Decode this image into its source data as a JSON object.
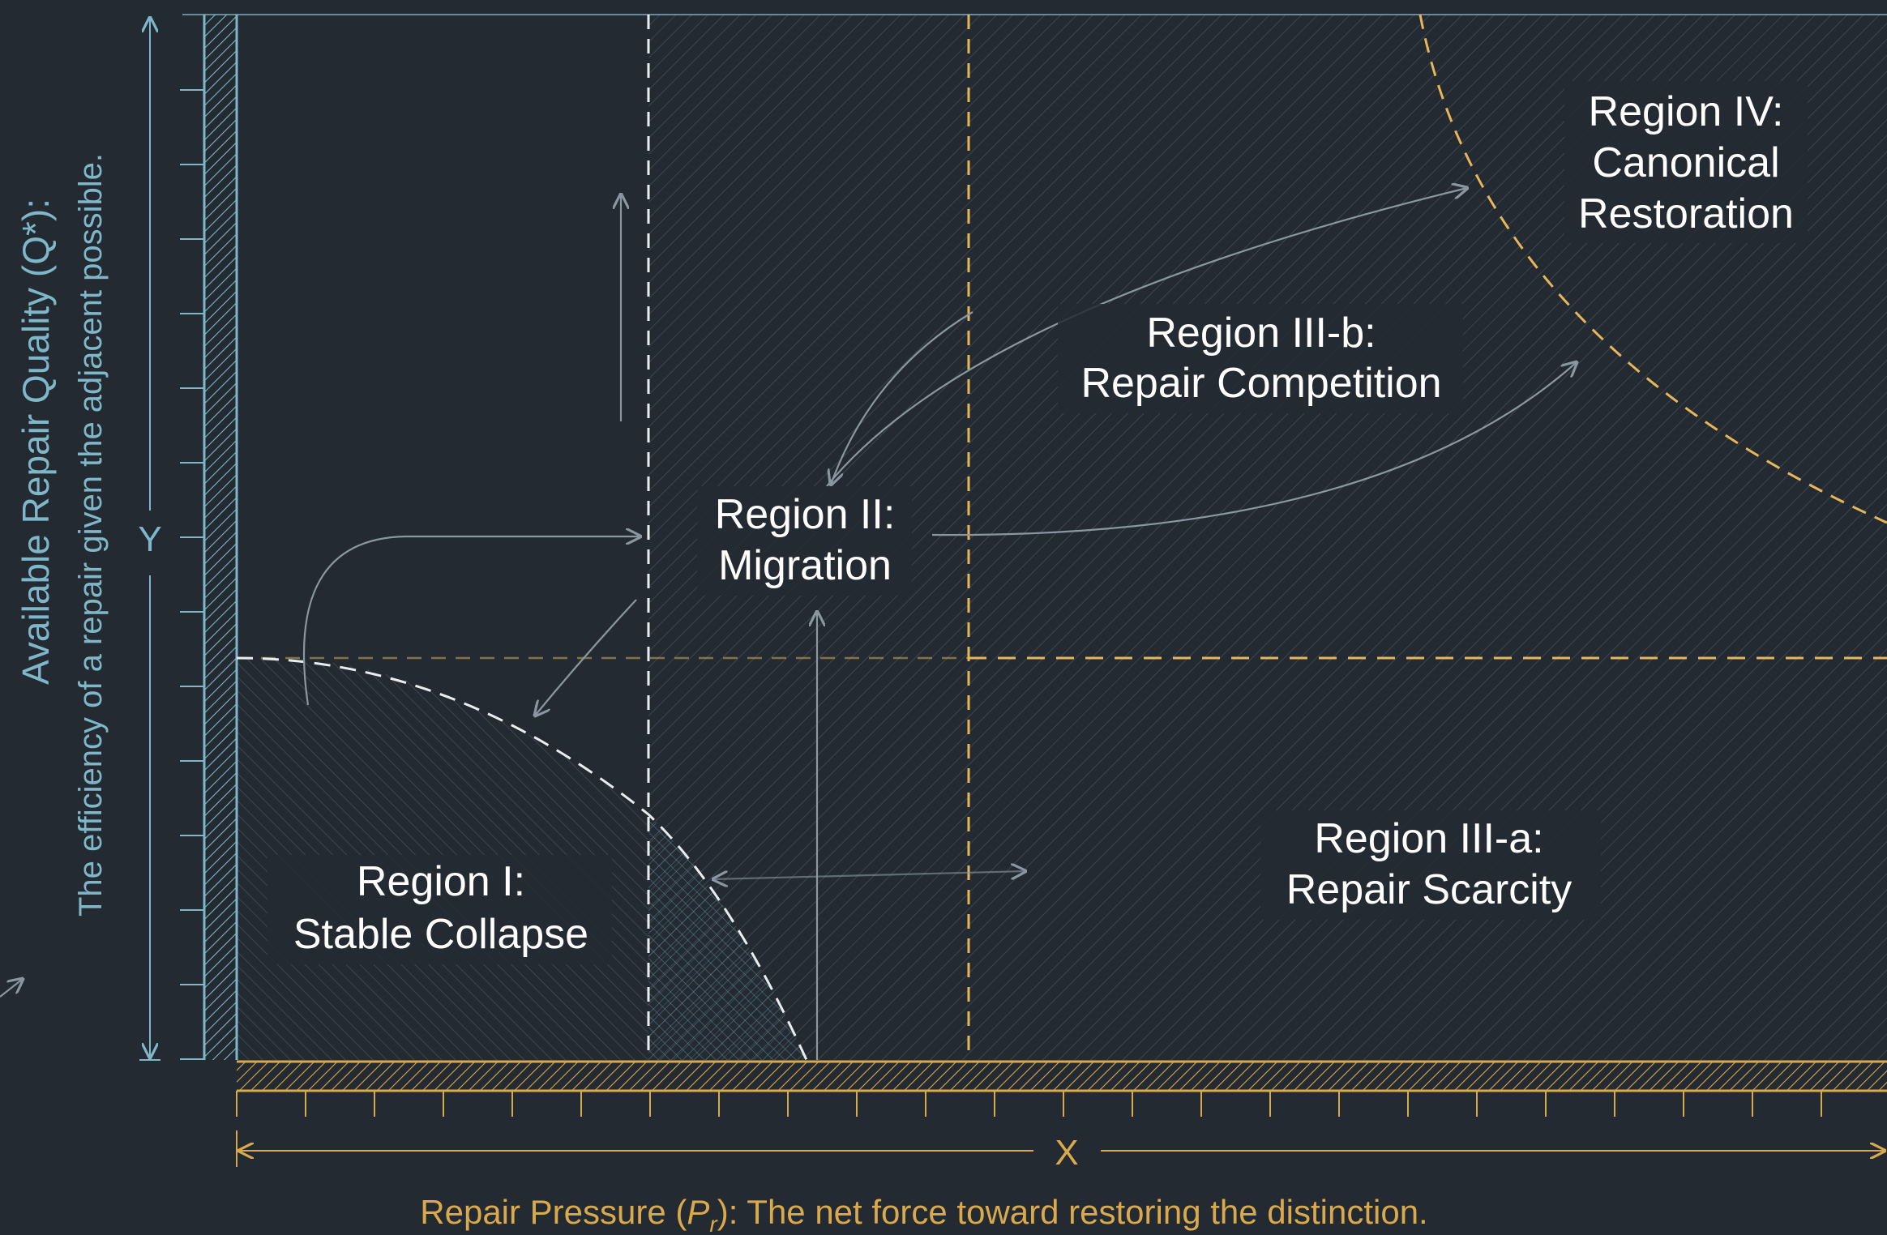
{
  "y_axis": {
    "marker": "Y",
    "title": "Available Repair Quality (Q*):",
    "description": "The efficiency of a repair given the adjacent possible."
  },
  "x_axis": {
    "marker": "X",
    "caption_prefix": "Repair Pressure (",
    "caption_var": "P",
    "caption_sub": "r",
    "caption_suffix": "): The net force toward restoring the distinction."
  },
  "regions": {
    "r1": {
      "line1": "Region I:",
      "line2": "Stable Collapse"
    },
    "r2": {
      "line1": "Region II:",
      "line2": "Migration"
    },
    "r3a": {
      "line1": "Region III-a:",
      "line2": "Repair Scarcity"
    },
    "r3b": {
      "line1": "Region III-b:",
      "line2": "Repair Competition"
    },
    "r4": {
      "line1": "Region IV:",
      "line2": "Canonical",
      "line3": "Restoration"
    }
  },
  "colors": {
    "background": "#232a31",
    "wall_blue": "#7fb6c8",
    "axis_gold": "#d9a94e",
    "boundary_gold": "#e6b75a",
    "boundary_white": "#e9edf0",
    "arrow_gray": "#8a97a0",
    "label_text": "#ffffff"
  }
}
